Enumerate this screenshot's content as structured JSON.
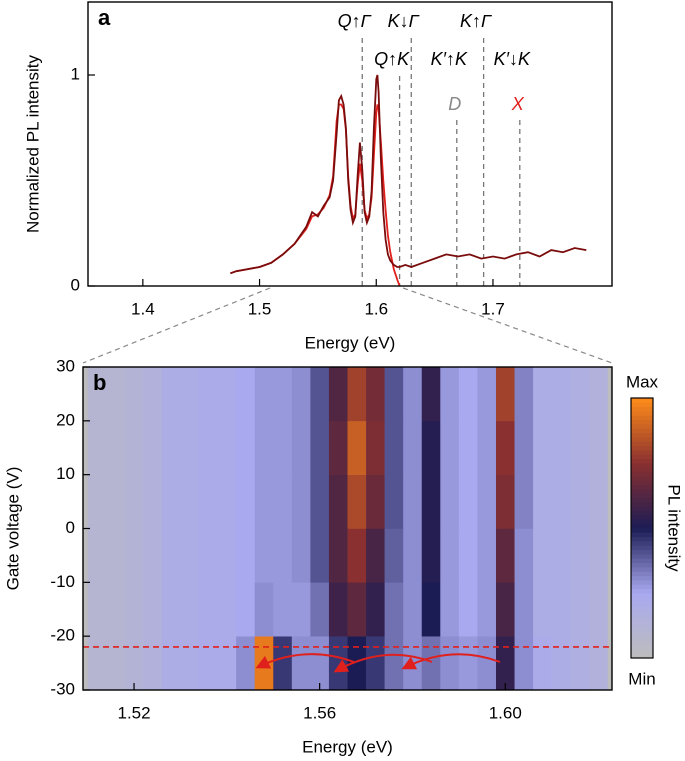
{
  "chart_data": [
    {
      "type": "line",
      "label": "a",
      "x_label": "Energy (eV)",
      "y_label": "Normalized PL intensity",
      "xlim": [
        1.353,
        1.802
      ],
      "ylim": [
        0,
        1.346
      ],
      "xticks": [
        1.4,
        1.5,
        1.6,
        1.7
      ],
      "yticks": [
        0,
        1
      ],
      "x": [
        1.475,
        1.48,
        1.49,
        1.5,
        1.51,
        1.52,
        1.53,
        1.54,
        1.545,
        1.55,
        1.555,
        1.56,
        1.563,
        1.566,
        1.568,
        1.57,
        1.572,
        1.574,
        1.576,
        1.578,
        1.58,
        1.582,
        1.584,
        1.586,
        1.588,
        1.59,
        1.592,
        1.594,
        1.596,
        1.598,
        1.6,
        1.601,
        1.602,
        1.604,
        1.606,
        1.608,
        1.61,
        1.612,
        1.615,
        1.618,
        1.62,
        1.625,
        1.63,
        1.64,
        1.65,
        1.66,
        1.67,
        1.68,
        1.69,
        1.7,
        1.71,
        1.72,
        1.73,
        1.74,
        1.75,
        1.76,
        1.77,
        1.78
      ],
      "series": [
        {
          "color": "#e0201c",
          "values": [
            0.06,
            0.07,
            0.08,
            0.09,
            0.11,
            0.15,
            0.2,
            0.27,
            0.33,
            0.34,
            0.37,
            0.43,
            0.52,
            0.78,
            0.86,
            0.86,
            0.84,
            0.74,
            0.52,
            0.38,
            0.32,
            0.34,
            0.48,
            0.58,
            0.5,
            0.36,
            0.32,
            0.34,
            0.42,
            0.62,
            0.82,
            0.86,
            0.84,
            0.68,
            0.5,
            0.36,
            0.24,
            0.16,
            0.08,
            0.03,
            0.0,
            null,
            null,
            null,
            null,
            null,
            null,
            null,
            null,
            null,
            null,
            null,
            null,
            null,
            null,
            null,
            null,
            null
          ]
        },
        {
          "color": "#7a0c0c",
          "values": [
            0.06,
            0.07,
            0.08,
            0.09,
            0.11,
            0.15,
            0.2,
            0.28,
            0.35,
            0.33,
            0.38,
            0.42,
            0.5,
            0.72,
            0.88,
            0.9,
            0.86,
            0.75,
            0.5,
            0.36,
            0.3,
            0.33,
            0.52,
            0.68,
            0.55,
            0.35,
            0.3,
            0.33,
            0.45,
            0.75,
            0.98,
            1.0,
            0.92,
            0.6,
            0.35,
            0.22,
            0.15,
            0.12,
            0.1,
            0.09,
            0.09,
            0.1,
            0.09,
            0.11,
            0.13,
            0.15,
            0.14,
            0.15,
            0.13,
            0.14,
            0.13,
            0.15,
            0.16,
            0.14,
            0.17,
            0.16,
            0.18,
            0.17
          ]
        }
      ],
      "vlines": [
        {
          "x": 1.588,
          "labels": [
            {
              "text": "Q↑Γ",
              "color": "#000000"
            }
          ]
        },
        {
          "x": 1.62,
          "labels": [
            {
              "text": "Q↑K",
              "color": "#000000"
            }
          ]
        },
        {
          "x": 1.63,
          "labels": [
            {
              "text": "K↓Γ",
              "color": "#000000"
            }
          ]
        },
        {
          "x": 1.669,
          "labels": [
            {
              "text": "K′↑K",
              "color": "#000000"
            },
            {
              "text": "D",
              "color": "#888888"
            }
          ]
        },
        {
          "x": 1.692,
          "labels": [
            {
              "text": "K↑Γ",
              "color": "#000000"
            }
          ]
        },
        {
          "x": 1.723,
          "labels": [
            {
              "text": "K′↓K",
              "color": "#000000"
            },
            {
              "text": "X",
              "color": "#e0201c"
            }
          ]
        }
      ]
    },
    {
      "type": "heatmap",
      "label": "b",
      "x_label": "Energy (eV)",
      "y_label": "Gate voltage (V)",
      "xlim": [
        1.509,
        1.623
      ],
      "ylim": [
        -30,
        30
      ],
      "xticks": [
        1.52,
        1.56,
        {
          "value": 1.6,
          "label": "1.60"
        }
      ],
      "yticks": [
        -30,
        -20,
        -10,
        0,
        10,
        20,
        30
      ],
      "xbins": [
        1.51,
        1.514,
        1.518,
        1.522,
        1.526,
        1.53,
        1.534,
        1.538,
        1.542,
        1.546,
        1.55,
        1.554,
        1.558,
        1.562,
        1.566,
        1.57,
        1.574,
        1.578,
        1.582,
        1.586,
        1.59,
        1.594,
        1.598,
        1.602,
        1.606,
        1.61,
        1.614,
        1.618,
        1.622
      ],
      "ybins": [
        -30,
        -20,
        -10,
        0,
        10,
        20,
        30
      ],
      "zlim": [
        0,
        1
      ],
      "z": [
        [
          0.1,
          0.1,
          0.12,
          0.15,
          0.2,
          0.2,
          0.22,
          0.22,
          0.3,
          0.95,
          0.45,
          0.3,
          0.3,
          0.45,
          0.5,
          0.45,
          0.35,
          0.3,
          0.35,
          0.3,
          0.28,
          0.3,
          0.55,
          0.3,
          0.22,
          0.2,
          0.18,
          0.15
        ],
        [
          0.1,
          0.1,
          0.12,
          0.15,
          0.2,
          0.2,
          0.22,
          0.22,
          0.25,
          0.3,
          0.28,
          0.28,
          0.35,
          0.58,
          0.65,
          0.55,
          0.35,
          0.3,
          0.5,
          0.28,
          0.25,
          0.28,
          0.6,
          0.3,
          0.2,
          0.2,
          0.18,
          0.15
        ],
        [
          0.1,
          0.1,
          0.12,
          0.15,
          0.2,
          0.2,
          0.22,
          0.22,
          0.25,
          0.28,
          0.28,
          0.3,
          0.4,
          0.62,
          0.75,
          0.6,
          0.38,
          0.3,
          0.52,
          0.28,
          0.25,
          0.28,
          0.65,
          0.3,
          0.2,
          0.2,
          0.18,
          0.15
        ],
        [
          0.1,
          0.1,
          0.12,
          0.15,
          0.2,
          0.2,
          0.22,
          0.22,
          0.25,
          0.28,
          0.28,
          0.3,
          0.4,
          0.62,
          0.82,
          0.68,
          0.4,
          0.3,
          0.52,
          0.28,
          0.25,
          0.28,
          0.72,
          0.32,
          0.2,
          0.2,
          0.18,
          0.15
        ],
        [
          0.1,
          0.1,
          0.12,
          0.15,
          0.2,
          0.2,
          0.22,
          0.22,
          0.25,
          0.28,
          0.28,
          0.3,
          0.4,
          0.65,
          0.88,
          0.72,
          0.4,
          0.3,
          0.52,
          0.28,
          0.25,
          0.28,
          0.75,
          0.32,
          0.2,
          0.2,
          0.18,
          0.15
        ],
        [
          0.1,
          0.1,
          0.12,
          0.15,
          0.2,
          0.2,
          0.22,
          0.22,
          0.25,
          0.28,
          0.28,
          0.3,
          0.4,
          0.62,
          0.8,
          0.7,
          0.4,
          0.3,
          0.55,
          0.28,
          0.25,
          0.28,
          0.8,
          0.32,
          0.2,
          0.2,
          0.18,
          0.15
        ]
      ],
      "colormap": [
        "#bdbdbd",
        "#a9a9f0",
        "#1c1c55",
        "#8a3030",
        "#ff8c1a"
      ],
      "hline": {
        "y": -22,
        "color": "#e0201c"
      },
      "colorbar": {
        "label": "PL intensity",
        "max_label": "Max",
        "min_label": "Min"
      }
    }
  ]
}
